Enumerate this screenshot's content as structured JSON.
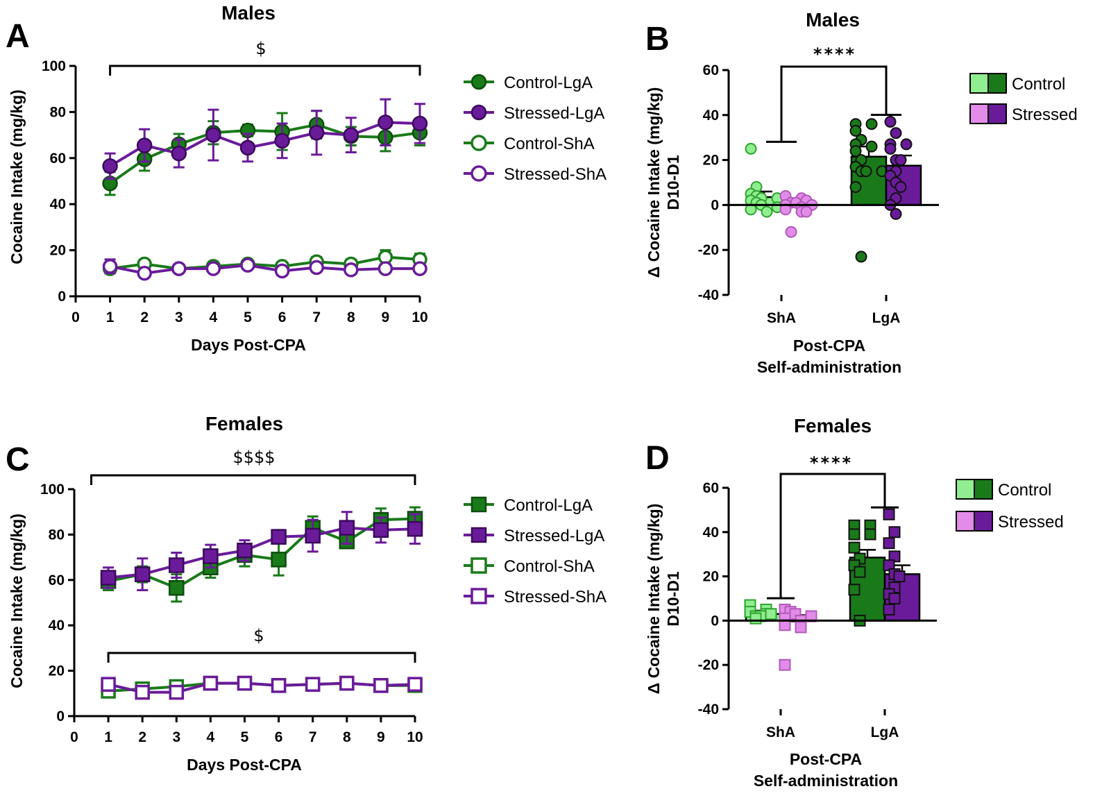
{
  "colors": {
    "control_dark": "#1a7a1a",
    "control_light": "#90ee90",
    "stressed_dark": "#6a1b9a",
    "stressed_light": "#e28be8",
    "axis": "#000000"
  },
  "chart_data": [
    {
      "panel": "A",
      "type": "line",
      "title": "Males",
      "xlabel": "Days Post-CPA",
      "ylabel": "Cocaine Intake (mg/kg)",
      "xlim": [
        0,
        10
      ],
      "ylim": [
        0,
        100
      ],
      "xticks": [
        0,
        1,
        2,
        3,
        4,
        5,
        6,
        7,
        8,
        9,
        10
      ],
      "yticks": [
        0,
        20,
        40,
        60,
        80,
        100
      ],
      "marker": "circle",
      "x": [
        1,
        2,
        3,
        4,
        5,
        6,
        7,
        8,
        9,
        10
      ],
      "series": [
        {
          "name": "Control-LgA",
          "color": "#1a7a1a",
          "filled": true,
          "values": [
            49,
            59.5,
            66,
            71,
            72,
            71.5,
            74.5,
            69.5,
            69,
            71
          ],
          "errors": [
            5,
            5,
            4.5,
            5,
            2.5,
            8,
            6,
            4,
            6,
            5.5
          ]
        },
        {
          "name": "Stressed-LgA",
          "color": "#6a1b9a",
          "filled": true,
          "values": [
            56.5,
            65.5,
            62,
            70,
            64.5,
            67.5,
            71,
            70,
            75.5,
            75
          ],
          "errors": [
            5.5,
            7,
            6,
            11,
            6,
            7.5,
            9.5,
            7.5,
            10,
            8.5
          ]
        },
        {
          "name": "Control-ShA",
          "color": "#1a7a1a",
          "filled": false,
          "values": [
            12,
            14,
            12,
            13,
            14,
            13,
            15,
            14,
            17,
            16
          ],
          "errors": [
            2,
            1.5,
            1.5,
            2,
            1.5,
            1.5,
            2,
            2,
            3,
            2.5
          ]
        },
        {
          "name": "Stressed-ShA",
          "color": "#6a1b9a",
          "filled": false,
          "values": [
            13,
            10,
            12,
            12,
            13.5,
            11,
            12.5,
            11.5,
            12,
            12
          ],
          "errors": [
            3,
            1.5,
            1.5,
            1.5,
            1.5,
            1.5,
            1.5,
            1.5,
            1.5,
            1.5
          ]
        }
      ],
      "brackets": [
        {
          "from": 1,
          "to": 10,
          "label": "$",
          "level": "top"
        }
      ]
    },
    {
      "panel": "B",
      "type": "bar",
      "title": "Males",
      "xlabel": "Post-CPA\nSelf-administration",
      "xlabel_lines": [
        "Post-CPA",
        "Self-administration"
      ],
      "ylabel": "Δ Cocaine Intake (mg/kg)",
      "ylabel2": "D10-D1",
      "ylim": [
        -40,
        60
      ],
      "yticks": [
        -40,
        -20,
        0,
        20,
        40,
        60
      ],
      "categories": [
        "ShA",
        "LgA"
      ],
      "marker": "circle",
      "series": [
        {
          "name": "Control",
          "color_light": "#90ee90",
          "color_dark": "#1a7a1a",
          "values": [
            3.5,
            21.5
          ],
          "errors": [
            2.5,
            4.5
          ],
          "points": [
            [
              25,
              8,
              5,
              4,
              3,
              3,
              2,
              1,
              0,
              -1,
              -2,
              -3
            ],
            [
              36,
              36,
              33,
              29,
              27,
              26,
              24,
              20,
              17,
              15,
              15,
              15,
              8,
              -23
            ]
          ]
        },
        {
          "name": "Stressed",
          "color_light": "#e28be8",
          "color_dark": "#6a1b9a",
          "values": [
            1,
            17.5
          ],
          "errors": [
            1.5,
            4.5
          ],
          "points": [
            [
              4,
              3,
              2,
              1,
              1,
              0,
              0,
              -1,
              -2,
              -3,
              -3,
              -12
            ],
            [
              37,
              32,
              27,
              27,
              25,
              20,
              20,
              15,
              13,
              10,
              8,
              3,
              0,
              -4
            ]
          ]
        }
      ],
      "significance": "****",
      "legend": [
        "Control",
        "Stressed"
      ]
    },
    {
      "panel": "C",
      "type": "line",
      "title": "Females",
      "xlabel": "Days Post-CPA",
      "ylabel": "Cocaine Intake (mg/kg)",
      "xlim": [
        0,
        10
      ],
      "ylim": [
        0,
        100
      ],
      "xticks": [
        0,
        1,
        2,
        3,
        4,
        5,
        6,
        7,
        8,
        9,
        10
      ],
      "yticks": [
        0,
        20,
        40,
        60,
        80,
        100
      ],
      "marker": "square",
      "x": [
        1,
        2,
        3,
        4,
        5,
        6,
        7,
        8,
        9,
        10
      ],
      "series": [
        {
          "name": "Control-LgA",
          "color": "#1a7a1a",
          "filled": true,
          "values": [
            59.5,
            62.5,
            56.5,
            65.5,
            71,
            69,
            83,
            77,
            86.5,
            87
          ],
          "errors": [
            4,
            3.5,
            6,
            4.5,
            5,
            7,
            5,
            3,
            5,
            5
          ]
        },
        {
          "name": "Stressed-LgA",
          "color": "#6a1b9a",
          "filled": true,
          "values": [
            61,
            62.5,
            66.5,
            70.5,
            73,
            79,
            79.5,
            83,
            82,
            82.5
          ],
          "errors": [
            4.5,
            7,
            5.5,
            5,
            4.5,
            3,
            7,
            7,
            5.5,
            6.5
          ]
        },
        {
          "name": "Control-ShA",
          "color": "#1a7a1a",
          "filled": false,
          "values": [
            11,
            12,
            13,
            14.5,
            14.5,
            13.5,
            14,
            14.5,
            13.5,
            13.5
          ],
          "errors": [
            1.5,
            1.5,
            2,
            1.5,
            1.5,
            1.5,
            1.5,
            1.5,
            1.5,
            1.5
          ]
        },
        {
          "name": "Stressed-ShA",
          "color": "#6a1b9a",
          "filled": false,
          "values": [
            14,
            10.5,
            10.5,
            14.5,
            14.5,
            13.5,
            14,
            14.5,
            13.5,
            14
          ],
          "errors": [
            2,
            1.5,
            1.5,
            1.5,
            1.5,
            1.5,
            1.5,
            1.5,
            1.5,
            1.5
          ]
        }
      ],
      "brackets": [
        {
          "from": 0.5,
          "to": 10,
          "label": "$$$$",
          "level": "top"
        },
        {
          "from": 1,
          "to": 10,
          "label": "$",
          "level": "low"
        }
      ]
    },
    {
      "panel": "D",
      "type": "bar",
      "title": "Females",
      "xlabel": "Post-CPA\nSelf-administration",
      "xlabel_lines": [
        "Post-CPA",
        "Self-administration"
      ],
      "ylabel": "Δ Cocaine Intake (mg/kg)",
      "ylabel2": "D10-D1",
      "ylim": [
        -40,
        60
      ],
      "yticks": [
        -40,
        -20,
        0,
        20,
        40,
        60
      ],
      "categories": [
        "ShA",
        "LgA"
      ],
      "marker": "square",
      "series": [
        {
          "name": "Control",
          "color_light": "#90ee90",
          "color_dark": "#1a7a1a",
          "values": [
            3,
            28.5
          ],
          "errors": [
            1.5,
            3.5
          ],
          "points": [
            [
              7,
              5,
              4,
              3,
              3,
              2,
              2,
              1
            ],
            [
              43,
              43,
              39,
              39,
              33,
              28,
              25,
              22,
              14,
              0
            ]
          ]
        },
        {
          "name": "Stressed",
          "color_light": "#e28be8",
          "color_dark": "#6a1b9a",
          "values": [
            0,
            21
          ],
          "errors": [
            2.5,
            4
          ],
          "points": [
            [
              5,
              4,
              3,
              2,
              1,
              0,
              -2,
              -3,
              -20
            ],
            [
              48,
              40,
              35,
              29,
              25,
              21,
              20,
              15,
              12,
              10,
              5
            ]
          ]
        }
      ],
      "significance": "****",
      "legend": [
        "Control",
        "Stressed"
      ]
    }
  ]
}
